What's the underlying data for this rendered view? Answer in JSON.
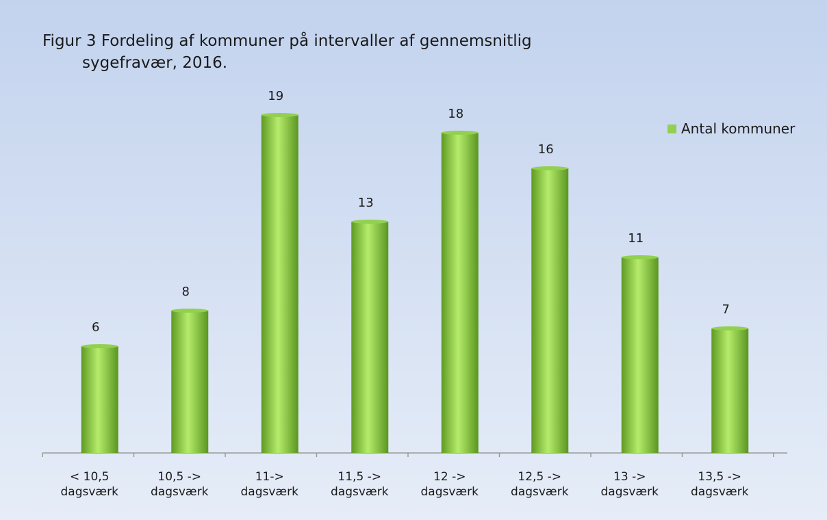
{
  "chart_data": {
    "type": "bar",
    "title": "Figur 3 Fordeling af kommuner på intervaller af gennemsnitlig\nsygefravær, 2016.",
    "categories": [
      "< 10,5\ndagsværk",
      "10,5 ->\ndagsværk",
      "11->\ndagsværk",
      "11,5 ->\ndagsværk",
      "12 ->\ndagsværk",
      "12,5 ->\ndagsværk",
      "13 ->\ndagsværk",
      "13,5 ->\ndagsværk"
    ],
    "series": [
      {
        "name": "Antal kommuner",
        "color": "#92d050",
        "values": [
          6,
          8,
          19,
          13,
          18,
          16,
          11,
          7
        ]
      }
    ],
    "ylim": [
      0,
      20
    ],
    "legend": "right"
  }
}
